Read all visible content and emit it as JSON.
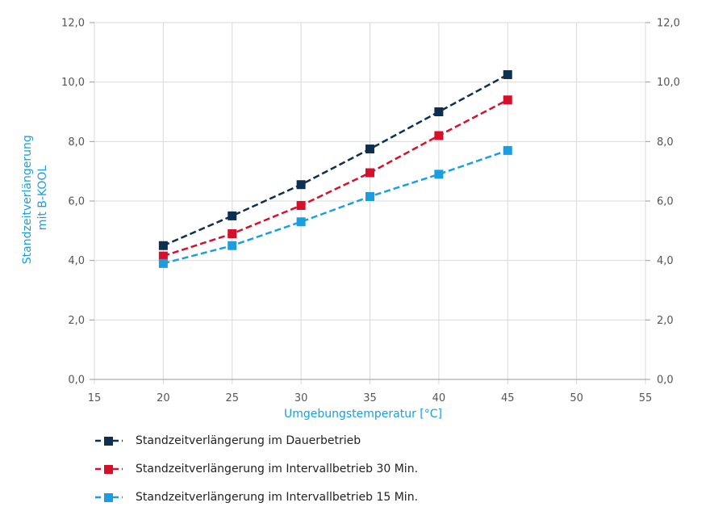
{
  "chart_data": {
    "type": "line",
    "x": [
      20,
      25,
      30,
      35,
      40,
      45
    ],
    "series": [
      {
        "name": "Standzeitverlängerung im Dauerbetrieb",
        "color": "#0d2f52",
        "values": [
          4.5,
          5.5,
          6.55,
          7.75,
          9.0,
          10.25
        ]
      },
      {
        "name": "Standzeitverlängerung im Intervallbetrieb 30 Min.",
        "color": "#d6102a",
        "values": [
          4.15,
          4.9,
          5.85,
          6.95,
          8.2,
          9.4
        ]
      },
      {
        "name": "Standzeitverlängerung im Intervallbetrieb 15 Min.",
        "color": "#1a9ee0",
        "values": [
          3.9,
          4.5,
          5.3,
          6.15,
          6.9,
          7.7
        ]
      }
    ],
    "xlim": [
      15,
      55
    ],
    "xticks": [
      "15",
      "20",
      "25",
      "30",
      "35",
      "40",
      "45",
      "50",
      "55"
    ],
    "ylim": [
      0,
      12
    ],
    "yticks": [
      "0,0",
      "2,0",
      "4,0",
      "6,0",
      "8,0",
      "10,0",
      "12,0"
    ],
    "xlabel": "Umgebungstemperatur [°C]",
    "ylabel_line1": "Standzeitverlängerung",
    "ylabel_line2": "mit B-KOOL",
    "axis_title_color": "#1a9ee0",
    "grid": true,
    "legend_position": "bottom-left"
  }
}
